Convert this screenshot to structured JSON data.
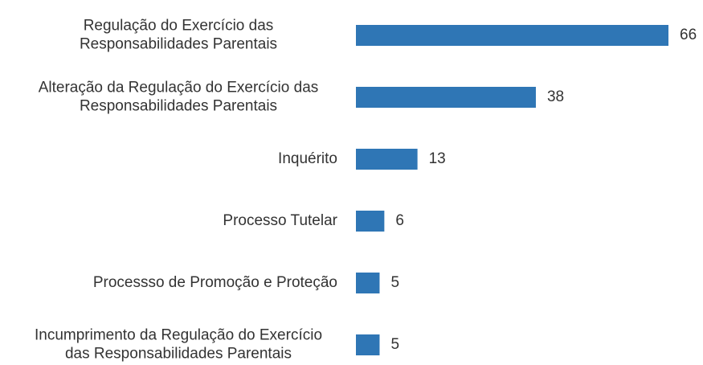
{
  "chart_data": {
    "type": "bar",
    "orientation": "horizontal",
    "color": "#2f76b5",
    "categories": [
      [
        "Regulação do Exercício das",
        "Responsabilidades Parentais"
      ],
      [
        "Alteração da Regulação do Exercício das",
        "Responsabilidades Parentais"
      ],
      [
        "Inquérito"
      ],
      [
        "Processo Tutelar"
      ],
      [
        "Processso de Promoção e Proteção"
      ],
      [
        "Incumprimento da Regulação do Exercício",
        "das Responsabilidades Parentais"
      ]
    ],
    "values": [
      66,
      38,
      13,
      6,
      5,
      5
    ]
  }
}
